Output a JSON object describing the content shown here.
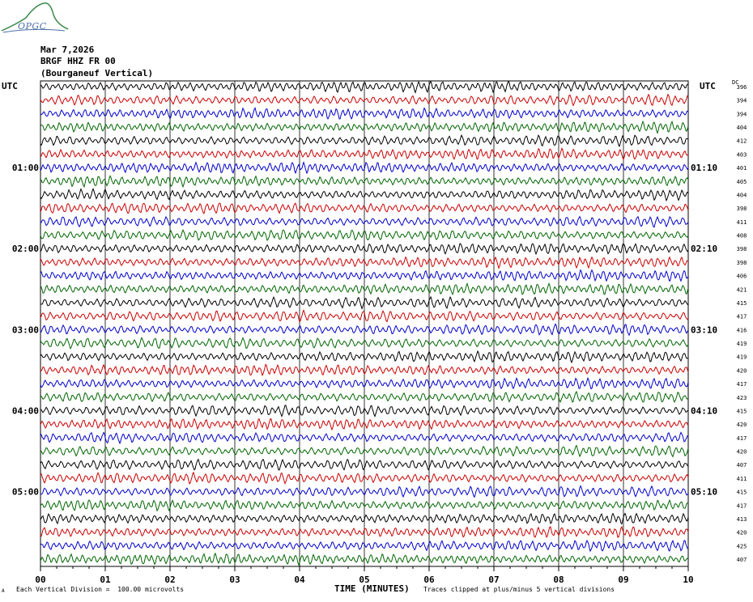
{
  "logo": {
    "text": "OPGC"
  },
  "header": {
    "date": "Mar 7,2026",
    "station": "BRGF HHZ FR 00",
    "description": "(Bourganeuf Vertical)"
  },
  "utc_left": "UTC",
  "utc_right": "UTC",
  "dc_label": "DC",
  "footer": {
    "mark": "A",
    "left": "Each Vertical Division =  100.00 microvolts",
    "center": "TIME (MINUTES)",
    "right": "Traces clipped at plus/minus 5 vertical divisions"
  },
  "chart_data": {
    "type": "line",
    "title": "BRGF HHZ FR 00",
    "xlabel": "TIME (MINUTES)",
    "ylabel": "",
    "xlim": [
      0,
      10
    ],
    "x_ticks": [
      "00",
      "01",
      "02",
      "03",
      "04",
      "05",
      "06",
      "07",
      "08",
      "09",
      "10"
    ],
    "trace_colors": [
      "#000000",
      "#cc0000",
      "#0000cc",
      "#006600"
    ],
    "grid": true,
    "left_hour_labels": [
      {
        "trace": 6,
        "label": "01:00"
      },
      {
        "trace": 12,
        "label": "02:00"
      },
      {
        "trace": 18,
        "label": "03:00"
      },
      {
        "trace": 24,
        "label": "04:00"
      },
      {
        "trace": 30,
        "label": "05:00"
      }
    ],
    "right_hour_labels": [
      {
        "trace": 6,
        "label": "01:10"
      },
      {
        "trace": 12,
        "label": "02:10"
      },
      {
        "trace": 18,
        "label": "03:10"
      },
      {
        "trace": 24,
        "label": "04:10"
      },
      {
        "trace": 30,
        "label": "05:10"
      }
    ],
    "dc_offsets": [
      396,
      394,
      394,
      404,
      412,
      403,
      401,
      405,
      404,
      398,
      411,
      408,
      398,
      398,
      406,
      421,
      415,
      417,
      416,
      419,
      419,
      420,
      417,
      423,
      415,
      420,
      417,
      420,
      407,
      411,
      415,
      417,
      413,
      420,
      425,
      407
    ]
  }
}
